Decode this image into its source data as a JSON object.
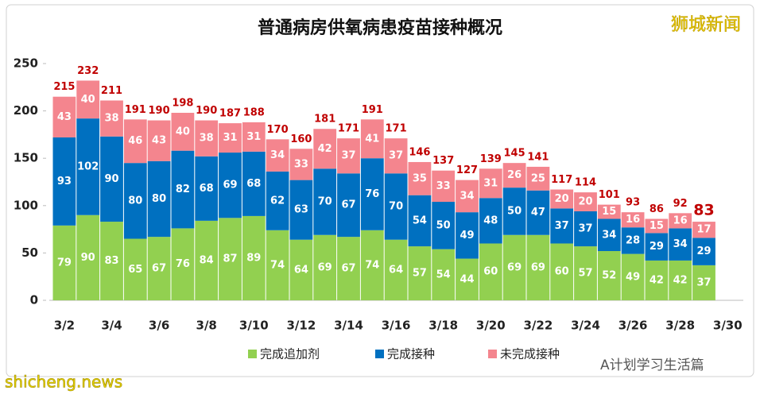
{
  "chart_data": {
    "type": "stacked_bar",
    "title": "普通病房供氧病患疫苗接种概况",
    "watermarks": [
      "狮城新闻",
      "shicheng.news",
      "A计划学习生活篇"
    ],
    "categories": [
      "3/2",
      null,
      "3/4",
      null,
      "3/6",
      null,
      "3/8",
      null,
      "3/10",
      null,
      "3/12",
      null,
      "3/14",
      null,
      "3/16",
      null,
      "3/18",
      null,
      "3/20",
      null,
      "3/22",
      null,
      "3/24",
      null,
      "3/26",
      null,
      "3/28",
      null,
      "3/30"
    ],
    "series": [
      {
        "name": "完成追加剂",
        "color": "#92d050",
        "values": [
          79,
          90,
          83,
          65,
          67,
          76,
          84,
          87,
          89,
          74,
          64,
          69,
          67,
          74,
          64,
          57,
          54,
          44,
          60,
          69,
          69,
          60,
          57,
          52,
          49,
          42,
          42,
          37,
          null
        ]
      },
      {
        "name": "完成接种",
        "color": "#0070c0",
        "values": [
          93,
          102,
          90,
          80,
          80,
          82,
          68,
          69,
          68,
          62,
          63,
          70,
          67,
          76,
          70,
          54,
          50,
          49,
          48,
          50,
          47,
          37,
          37,
          34,
          28,
          29,
          34,
          29,
          null
        ]
      },
      {
        "name": "未完成接种",
        "color": "#f4858e",
        "values": [
          43,
          40,
          38,
          46,
          43,
          40,
          38,
          31,
          31,
          34,
          33,
          42,
          37,
          41,
          37,
          35,
          33,
          34,
          31,
          26,
          25,
          20,
          20,
          15,
          16,
          15,
          16,
          17,
          null
        ]
      }
    ],
    "totals": [
      215,
      232,
      211,
      191,
      190,
      198,
      190,
      187,
      188,
      170,
      160,
      181,
      171,
      191,
      171,
      146,
      137,
      127,
      139,
      145,
      141,
      117,
      114,
      101,
      93,
      86,
      92,
      83,
      null
    ],
    "ylim": [
      0,
      250
    ],
    "yticks": [
      0,
      50,
      100,
      150,
      200,
      250
    ],
    "grid": false,
    "legend": "bottom"
  }
}
